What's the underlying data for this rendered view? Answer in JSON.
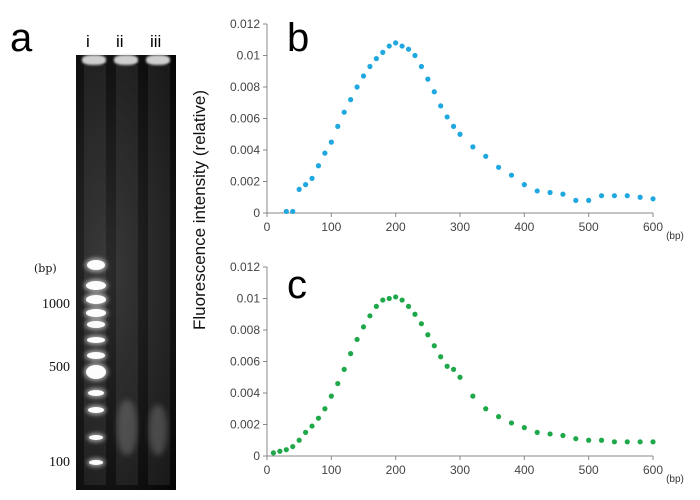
{
  "panels": {
    "a": "a",
    "b": "b",
    "c": "c"
  },
  "gel": {
    "lanes": [
      "i",
      "ii",
      "iii"
    ],
    "unit": "(bp)",
    "size_markers": [
      "1000",
      "500",
      "100"
    ]
  },
  "shared_ylabel": "Fluorescence intensity (relative)",
  "chart_data": [
    {
      "type": "scatter",
      "panel": "b",
      "color": "#1fa7e0",
      "xlabel": "(bp)",
      "ylabel": "Fluorescence intensity (relative)",
      "xlim": [
        0,
        600
      ],
      "ylim": [
        0,
        0.012
      ],
      "xticks": [
        0,
        100,
        200,
        300,
        400,
        500,
        600
      ],
      "yticks": [
        0,
        0.002,
        0.004,
        0.006,
        0.008,
        0.01,
        0.012
      ],
      "xtick_labels": [
        "0",
        "100",
        "200",
        "300",
        "400",
        "500",
        "600"
      ],
      "ytick_labels": [
        "0",
        "0.002",
        "0.004",
        "0.006",
        "0.008",
        "0.01",
        "0.012"
      ],
      "points": {
        "x": [
          30,
          40,
          50,
          60,
          70,
          80,
          90,
          100,
          110,
          120,
          130,
          140,
          150,
          160,
          170,
          180,
          190,
          200,
          210,
          220,
          230,
          240,
          250,
          260,
          270,
          280,
          290,
          300,
          320,
          340,
          360,
          380,
          400,
          420,
          440,
          460,
          480,
          500,
          520,
          540,
          560,
          580,
          600
        ],
        "y": [
          0.0001,
          0.0001,
          0.0015,
          0.0018,
          0.0022,
          0.003,
          0.0038,
          0.0045,
          0.0055,
          0.0064,
          0.0072,
          0.008,
          0.0087,
          0.0093,
          0.0098,
          0.0102,
          0.0106,
          0.0108,
          0.0106,
          0.0104,
          0.01,
          0.0093,
          0.0085,
          0.0077,
          0.0068,
          0.0061,
          0.0055,
          0.005,
          0.0042,
          0.0036,
          0.0029,
          0.0024,
          0.0018,
          0.0014,
          0.0013,
          0.0012,
          0.0008,
          0.0008,
          0.0011,
          0.0011,
          0.0011,
          0.001,
          0.0009
        ]
      }
    },
    {
      "type": "scatter",
      "panel": "c",
      "color": "#1fa84a",
      "xlabel": "(bp)",
      "ylabel": "Fluorescence intensity (relative)",
      "xlim": [
        0,
        600
      ],
      "ylim": [
        0,
        0.012
      ],
      "xticks": [
        0,
        100,
        200,
        300,
        400,
        500,
        600
      ],
      "yticks": [
        0,
        0.002,
        0.004,
        0.006,
        0.008,
        0.01,
        0.012
      ],
      "xtick_labels": [
        "0",
        "100",
        "200",
        "300",
        "400",
        "500",
        "600"
      ],
      "ytick_labels": [
        "0",
        "0.002",
        "0.004",
        "0.006",
        "0.008",
        "0.01",
        "0.012"
      ],
      "points": {
        "x": [
          10,
          20,
          30,
          40,
          50,
          60,
          70,
          80,
          90,
          100,
          110,
          120,
          130,
          140,
          150,
          160,
          170,
          180,
          190,
          200,
          210,
          220,
          230,
          240,
          250,
          260,
          270,
          280,
          290,
          300,
          320,
          340,
          360,
          380,
          400,
          420,
          440,
          460,
          480,
          500,
          520,
          540,
          560,
          580,
          600
        ],
        "y": [
          0.0002,
          0.0003,
          0.0004,
          0.0006,
          0.001,
          0.0015,
          0.0019,
          0.0024,
          0.003,
          0.0038,
          0.0046,
          0.0055,
          0.0065,
          0.0074,
          0.0082,
          0.0089,
          0.0095,
          0.0099,
          0.01,
          0.0101,
          0.0099,
          0.0095,
          0.009,
          0.0084,
          0.0077,
          0.007,
          0.0063,
          0.0057,
          0.0055,
          0.005,
          0.0038,
          0.003,
          0.0025,
          0.0021,
          0.0018,
          0.0015,
          0.0014,
          0.0013,
          0.0011,
          0.001,
          0.001,
          0.0009,
          0.0009,
          0.0009,
          0.0009
        ]
      }
    }
  ]
}
